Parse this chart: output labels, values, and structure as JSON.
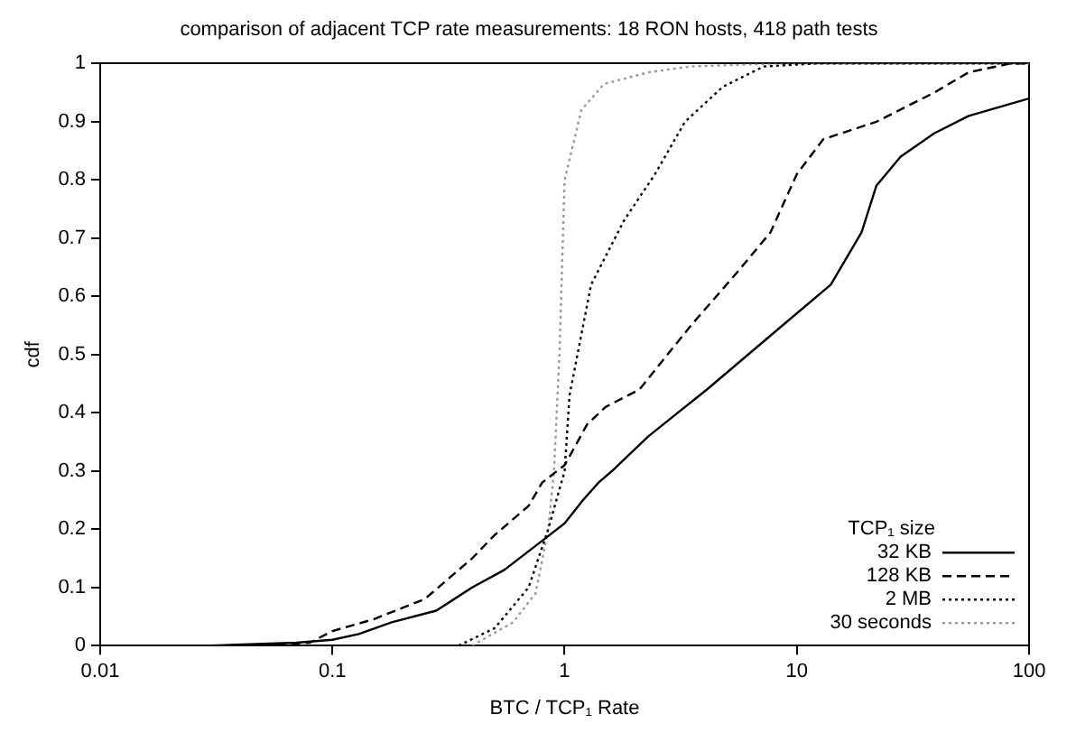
{
  "chart_data": {
    "type": "line",
    "title": "comparison of adjacent TCP rate measurements: 18 RON hosts, 418 path tests",
    "xlabel": "BTC / TCP₁ Rate",
    "ylabel": "cdf",
    "legend_title": "TCP₁ size",
    "log": "x",
    "xlim": [
      0.01,
      100
    ],
    "ylim": [
      0,
      1
    ],
    "xticks": [
      0.01,
      0.1,
      1,
      10,
      100
    ],
    "yticks": [
      0,
      0.1,
      0.2,
      0.3,
      0.4,
      0.5,
      0.6,
      0.7,
      0.8,
      0.9,
      1
    ],
    "grid": false,
    "legend": "bottom right",
    "marker": "none",
    "series": [
      {
        "name": "32 KB",
        "color": "#000000",
        "line_style": "solid",
        "x": [
          0.03,
          0.07,
          0.1,
          0.13,
          0.18,
          0.28,
          0.4,
          0.55,
          0.8,
          1,
          1.2,
          1.4,
          1.6,
          2.3,
          4.1,
          8.1,
          14,
          19,
          22,
          28,
          39,
          55,
          100
        ],
        "values": [
          0,
          0.005,
          0.01,
          0.02,
          0.04,
          0.06,
          0.1,
          0.13,
          0.18,
          0.21,
          0.25,
          0.28,
          0.3,
          0.36,
          0.44,
          0.54,
          0.62,
          0.71,
          0.79,
          0.84,
          0.88,
          0.91,
          0.94
        ]
      },
      {
        "name": "128 KB",
        "color": "#000000",
        "line_style": "dashed",
        "x": [
          0.05,
          0.08,
          0.1,
          0.15,
          0.25,
          0.4,
          0.5,
          0.7,
          0.8,
          1,
          1.25,
          1.5,
          2.1,
          3.5,
          5.5,
          7.7,
          10,
          13,
          22,
          39,
          55,
          83,
          100
        ],
        "values": [
          0,
          0.005,
          0.025,
          0.045,
          0.08,
          0.15,
          0.19,
          0.24,
          0.28,
          0.31,
          0.38,
          0.41,
          0.44,
          0.55,
          0.64,
          0.71,
          0.81,
          0.87,
          0.9,
          0.95,
          0.985,
          1,
          1
        ]
      },
      {
        "name": "2 MB",
        "color": "#000000",
        "line_style": "dotted",
        "x": [
          0.35,
          0.5,
          0.7,
          0.85,
          1,
          1.05,
          1.3,
          1.8,
          2.45,
          3.3,
          4.8,
          7.2,
          12,
          100
        ],
        "values": [
          0,
          0.03,
          0.1,
          0.2,
          0.3,
          0.43,
          0.62,
          0.73,
          0.81,
          0.9,
          0.96,
          0.995,
          1,
          1
        ]
      },
      {
        "name": "30 seconds",
        "color": "#999999",
        "line_style": "dotted",
        "x": [
          0.4,
          0.6,
          0.75,
          0.85,
          0.9,
          0.95,
          1,
          1.18,
          1.48,
          2.3,
          3.5,
          8,
          100
        ],
        "values": [
          0,
          0.04,
          0.09,
          0.2,
          0.3,
          0.5,
          0.8,
          0.92,
          0.965,
          0.985,
          0.995,
          1,
          1
        ]
      }
    ]
  }
}
